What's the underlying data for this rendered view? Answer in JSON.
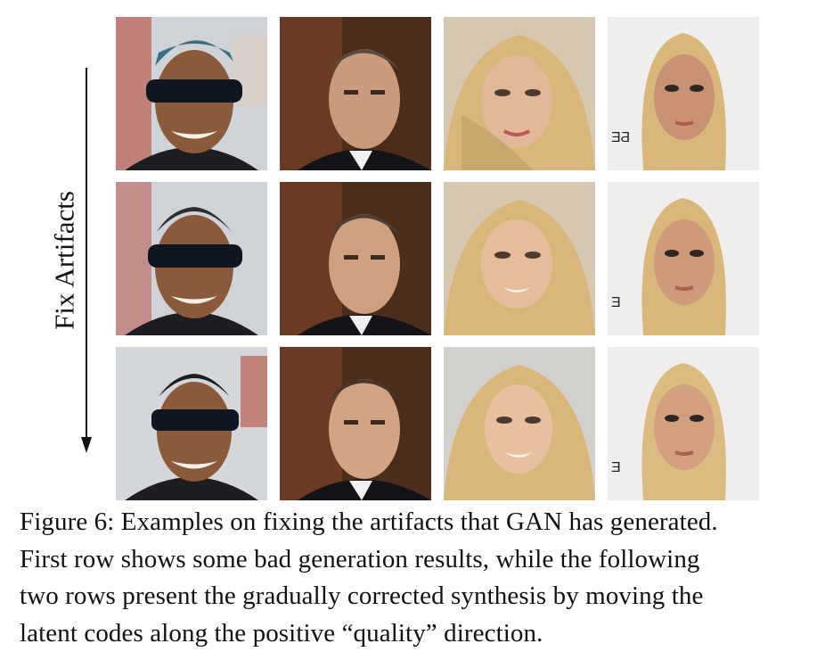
{
  "axis": {
    "label": "Fix Artifacts",
    "arrow_direction": "down"
  },
  "grid": {
    "rows": 3,
    "columns": 4,
    "row_meaning": [
      "bad generation results",
      "gradually corrected",
      "gradually corrected"
    ],
    "column_subjects": [
      "man-with-sunglasses",
      "man-in-suit",
      "blonde-woman-curly",
      "blonde-woman-straight"
    ]
  },
  "caption": {
    "lines": [
      "Figure 6: Examples on fixing the artifacts that GAN has generated.",
      "First row shows some bad generation results, while the following",
      "two rows present the gradually corrected synthesis by moving the",
      "latent codes along the positive “quality” direction."
    ]
  },
  "colors": {
    "skin_dark": "#8a5a3a",
    "skin_light": "#e0b28e",
    "hair_blonde": "#d9b77a",
    "hair_dark": "#3a2f28",
    "background_gray": "#d8d4cf"
  }
}
